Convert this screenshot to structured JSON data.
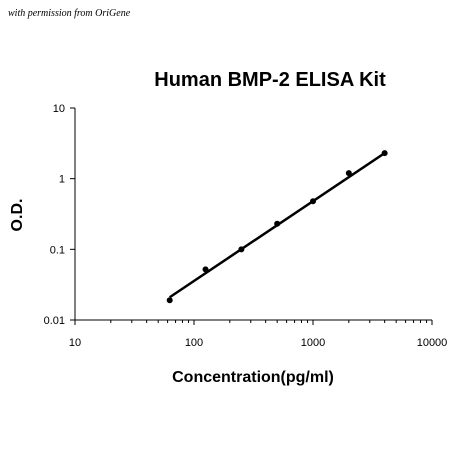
{
  "watermark": "with permission from OriGene",
  "chart_data": {
    "type": "scatter",
    "title": "Human BMP-2 ELISA Kit",
    "xlabel": "Concentration(pg/ml)",
    "ylabel": "O.D.",
    "xscale": "log",
    "yscale": "log",
    "xlim": [
      10,
      10000
    ],
    "ylim": [
      0.01,
      10
    ],
    "x_ticks": [
      "10",
      "100",
      "1000",
      "10000"
    ],
    "y_ticks": [
      "0.01",
      "0.1",
      "1",
      "10"
    ],
    "grid": false,
    "legend": "none",
    "series": [
      {
        "x": [
          62.5,
          125,
          250,
          500,
          1000,
          2000,
          4000
        ],
        "y": [
          0.019,
          0.052,
          0.1,
          0.23,
          0.48,
          1.2,
          2.3
        ]
      }
    ],
    "trendline": {
      "x": [
        62.5,
        4000
      ],
      "y": [
        0.021,
        2.3
      ]
    },
    "colors": {
      "points": "#000000",
      "line": "#000000",
      "axes": "#000000"
    }
  }
}
